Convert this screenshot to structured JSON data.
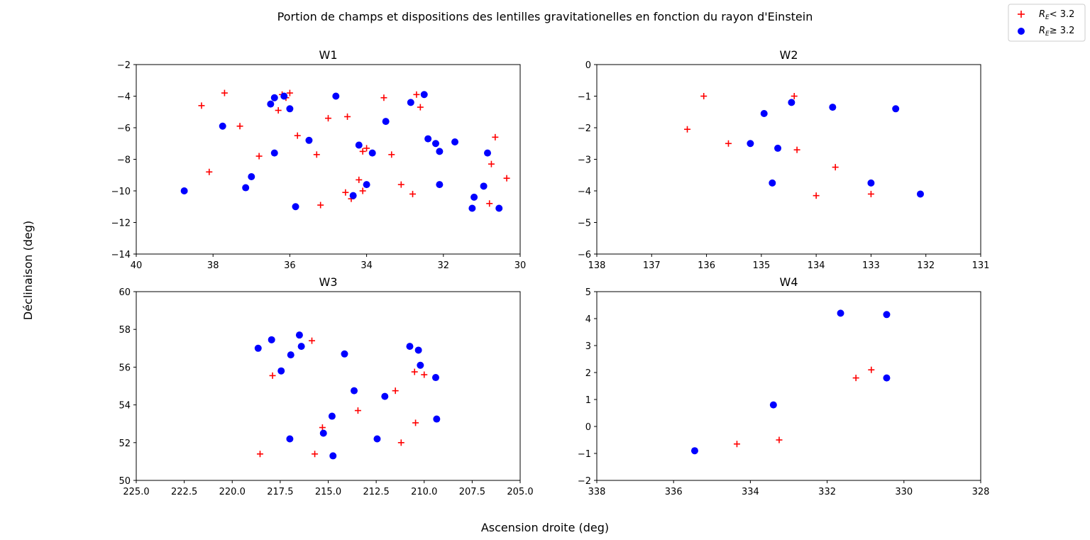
{
  "figure": {
    "title": "Portion de champs et dispositions des lentilles gravitationelles en fonction du rayon d'Einstein",
    "xlabel": "Ascension droite (deg)",
    "ylabel": "Déclinaison (deg)"
  },
  "legend": {
    "placement": "top-right",
    "entries": [
      {
        "label_main": "R",
        "label_sub": "E",
        "label_rest": "< 3.2",
        "marker": "plus",
        "color": "#ff0000"
      },
      {
        "label_main": "R",
        "label_sub": "E",
        "label_rest": "≥  3.2",
        "marker": "circle",
        "color": "#0000ff"
      }
    ]
  },
  "colors": {
    "low": "#ff0000",
    "high": "#0000ff",
    "axes": "#000000"
  },
  "chart_data": [
    {
      "type": "scatter",
      "title": "W1",
      "xlim": [
        40,
        30
      ],
      "ylim": [
        -14,
        -2
      ],
      "xticks": [
        40,
        38,
        36,
        34,
        32,
        30
      ],
      "yticks": [
        -14,
        -12,
        -10,
        -8,
        -6,
        -4,
        -2
      ],
      "xtick_labels": [
        "40",
        "38",
        "36",
        "34",
        "32",
        "30"
      ],
      "ytick_labels": [
        "−14",
        "−12",
        "−10",
        "−8",
        "−6",
        "−4",
        "−2"
      ],
      "series": [
        {
          "name": "R_E < 3.2",
          "marker": "plus",
          "color": "#ff0000",
          "points": [
            [
              38.3,
              -4.6
            ],
            [
              37.7,
              -3.8
            ],
            [
              38.1,
              -8.8
            ],
            [
              37.3,
              -5.9
            ],
            [
              36.8,
              -7.8
            ],
            [
              36.3,
              -4.9
            ],
            [
              36.2,
              -3.9
            ],
            [
              36.1,
              -4.1
            ],
            [
              36.0,
              -3.8
            ],
            [
              35.8,
              -6.5
            ],
            [
              35.3,
              -7.7
            ],
            [
              35.2,
              -10.9
            ],
            [
              35.0,
              -5.4
            ],
            [
              34.5,
              -5.3
            ],
            [
              34.55,
              -10.1
            ],
            [
              34.4,
              -10.5
            ],
            [
              34.2,
              -9.3
            ],
            [
              34.1,
              -7.5
            ],
            [
              34.1,
              -10.0
            ],
            [
              34.0,
              -7.3
            ],
            [
              33.55,
              -4.1
            ],
            [
              33.35,
              -7.7
            ],
            [
              33.1,
              -9.6
            ],
            [
              32.8,
              -10.2
            ],
            [
              32.7,
              -3.9
            ],
            [
              32.6,
              -4.7
            ],
            [
              30.8,
              -10.8
            ],
            [
              30.75,
              -8.3
            ],
            [
              30.65,
              -6.6
            ],
            [
              30.35,
              -9.2
            ]
          ]
        },
        {
          "name": "R_E ≥ 3.2",
          "marker": "circle",
          "color": "#0000ff",
          "points": [
            [
              38.75,
              -10.0
            ],
            [
              37.75,
              -5.9
            ],
            [
              37.15,
              -9.8
            ],
            [
              37.0,
              -9.1
            ],
            [
              36.5,
              -4.5
            ],
            [
              36.4,
              -4.1
            ],
            [
              36.4,
              -7.6
            ],
            [
              36.15,
              -4.0
            ],
            [
              36.0,
              -4.8
            ],
            [
              35.85,
              -11.0
            ],
            [
              35.5,
              -6.8
            ],
            [
              34.8,
              -4.0
            ],
            [
              34.35,
              -10.3
            ],
            [
              34.2,
              -7.1
            ],
            [
              34.0,
              -9.6
            ],
            [
              33.85,
              -7.6
            ],
            [
              33.5,
              -5.6
            ],
            [
              32.85,
              -4.4
            ],
            [
              32.5,
              -3.9
            ],
            [
              32.4,
              -6.7
            ],
            [
              32.2,
              -7.0
            ],
            [
              32.1,
              -7.5
            ],
            [
              32.1,
              -9.6
            ],
            [
              31.7,
              -6.9
            ],
            [
              31.25,
              -11.1
            ],
            [
              31.2,
              -10.4
            ],
            [
              30.95,
              -9.7
            ],
            [
              30.85,
              -7.6
            ],
            [
              30.55,
              -11.1
            ]
          ]
        }
      ]
    },
    {
      "type": "scatter",
      "title": "W2",
      "xlim": [
        138,
        131
      ],
      "ylim": [
        -6,
        0
      ],
      "xticks": [
        138,
        137,
        136,
        135,
        134,
        133,
        132,
        131
      ],
      "yticks": [
        -6,
        -5,
        -4,
        -3,
        -2,
        -1,
        0
      ],
      "xtick_labels": [
        "138",
        "137",
        "136",
        "135",
        "134",
        "133",
        "132",
        "131"
      ],
      "ytick_labels": [
        "−6",
        "−5",
        "−4",
        "−3",
        "−2",
        "−1",
        "0"
      ],
      "series": [
        {
          "name": "R_E < 3.2",
          "marker": "plus",
          "color": "#ff0000",
          "points": [
            [
              136.35,
              -2.05
            ],
            [
              136.05,
              -1.0
            ],
            [
              135.6,
              -2.5
            ],
            [
              134.4,
              -1.0
            ],
            [
              134.35,
              -2.7
            ],
            [
              134.0,
              -4.15
            ],
            [
              133.65,
              -3.25
            ],
            [
              133.0,
              -4.1
            ]
          ]
        },
        {
          "name": "R_E ≥ 3.2",
          "marker": "circle",
          "color": "#0000ff",
          "points": [
            [
              135.2,
              -2.5
            ],
            [
              134.95,
              -1.55
            ],
            [
              134.8,
              -3.75
            ],
            [
              134.7,
              -2.65
            ],
            [
              134.45,
              -1.2
            ],
            [
              133.7,
              -1.35
            ],
            [
              133.0,
              -3.75
            ],
            [
              132.55,
              -1.4
            ],
            [
              132.1,
              -4.1
            ]
          ]
        }
      ]
    },
    {
      "type": "scatter",
      "title": "W3",
      "xlim": [
        225,
        205
      ],
      "ylim": [
        50,
        60
      ],
      "xticks": [
        225,
        222.5,
        220,
        217.5,
        215,
        212.5,
        210,
        207.5,
        205
      ],
      "yticks": [
        50,
        52,
        54,
        56,
        58,
        60
      ],
      "xtick_labels": [
        "225.0",
        "222.5",
        "220.0",
        "217.5",
        "215.0",
        "212.5",
        "210.0",
        "207.5",
        "205.0"
      ],
      "ytick_labels": [
        "50",
        "52",
        "54",
        "56",
        "58",
        "60"
      ],
      "series": [
        {
          "name": "R_E < 3.2",
          "marker": "plus",
          "color": "#ff0000",
          "points": [
            [
              218.55,
              51.4
            ],
            [
              217.9,
              55.55
            ],
            [
              215.85,
              57.4
            ],
            [
              215.7,
              51.4
            ],
            [
              215.3,
              52.8
            ],
            [
              213.45,
              53.7
            ],
            [
              211.5,
              54.75
            ],
            [
              211.2,
              52.0
            ],
            [
              210.5,
              55.75
            ],
            [
              210.45,
              53.05
            ],
            [
              210.0,
              55.6
            ]
          ]
        },
        {
          "name": "R_E ≥ 3.2",
          "marker": "circle",
          "color": "#0000ff",
          "points": [
            [
              218.65,
              57.0
            ],
            [
              217.95,
              57.45
            ],
            [
              217.45,
              55.8
            ],
            [
              217.0,
              52.2
            ],
            [
              216.95,
              56.65
            ],
            [
              216.5,
              57.7
            ],
            [
              216.4,
              57.1
            ],
            [
              215.25,
              52.5
            ],
            [
              214.8,
              53.4
            ],
            [
              214.75,
              51.3
            ],
            [
              214.15,
              56.7
            ],
            [
              213.65,
              54.75
            ],
            [
              212.45,
              52.2
            ],
            [
              212.05,
              54.45
            ],
            [
              210.75,
              57.1
            ],
            [
              210.3,
              56.9
            ],
            [
              210.2,
              56.1
            ],
            [
              209.4,
              55.45
            ],
            [
              209.35,
              53.25
            ]
          ]
        }
      ]
    },
    {
      "type": "scatter",
      "title": "W4",
      "xlim": [
        338,
        328
      ],
      "ylim": [
        -2,
        5
      ],
      "xticks": [
        338,
        336,
        334,
        332,
        330,
        328
      ],
      "yticks": [
        -2,
        -1,
        0,
        1,
        2,
        3,
        4,
        5
      ],
      "xtick_labels": [
        "338",
        "336",
        "334",
        "332",
        "330",
        "328"
      ],
      "ytick_labels": [
        "−2",
        "−1",
        "0",
        "1",
        "2",
        "3",
        "4",
        "5"
      ],
      "series": [
        {
          "name": "R_E < 3.2",
          "marker": "plus",
          "color": "#ff0000",
          "points": [
            [
              334.35,
              -0.65
            ],
            [
              333.25,
              -0.5
            ],
            [
              331.25,
              1.8
            ],
            [
              330.85,
              2.1
            ]
          ]
        },
        {
          "name": "R_E ≥ 3.2",
          "marker": "circle",
          "color": "#0000ff",
          "points": [
            [
              335.45,
              -0.9
            ],
            [
              333.4,
              0.8
            ],
            [
              331.65,
              4.2
            ],
            [
              330.45,
              4.15
            ],
            [
              330.45,
              1.8
            ]
          ]
        }
      ]
    }
  ]
}
